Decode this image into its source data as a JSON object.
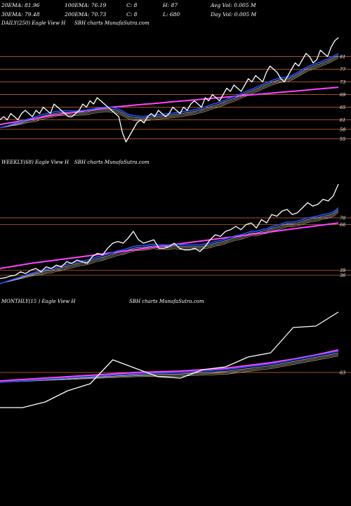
{
  "header": {
    "r1": [
      "20EMA: 81.96",
      "100EMA: 76.19",
      "C: 8",
      "H: 87",
      "Avg Vol: 0.005 M"
    ],
    "r2": [
      "30EMA: 79.48",
      "200EMA: 70.73",
      "C: 8",
      "L: 680",
      "Day Vol: 0.005 M"
    ]
  },
  "panels": [
    {
      "id": "daily",
      "title_a": "DAILY(250) Eagle  View  H",
      "title_b": "SBH charts MunafaSutra.com"
    },
    {
      "id": "weekly",
      "title_a": "WEEKLY(68) Eagle  View  H",
      "title_b": "SBH charts MunafaSutra.com"
    },
    {
      "id": "monthly",
      "title_a": "MONTHLY(15           ) Eagle  View  H",
      "title_b": "SBH charts MunafaSutra.com"
    }
  ],
  "colors": {
    "price": "#ffffff",
    "ema_fast": "#2255ff",
    "ema_slow": "#ff44ff",
    "level": "#a0522d",
    "ema_grey1": "#aaaaaa",
    "ema_grey2": "#dddddd",
    "ema_tan": "#d2b48c"
  },
  "chart_data": [
    {
      "type": "line",
      "panel": "daily",
      "ylim": [
        50,
        90
      ],
      "levels": [
        81,
        77,
        73,
        69,
        65,
        61,
        58,
        55
      ],
      "series": [
        {
          "role": "price",
          "values": [
            61,
            62,
            61,
            63,
            62,
            61,
            63,
            64,
            63,
            62,
            64,
            63,
            65,
            64,
            63,
            66,
            65,
            64,
            63,
            62,
            62,
            63,
            64,
            66,
            65,
            67,
            66,
            68,
            67,
            66,
            65,
            64,
            63,
            62,
            57,
            54,
            56,
            58,
            60,
            61,
            60,
            62,
            63,
            62,
            64,
            63,
            62,
            63,
            65,
            64,
            63,
            65,
            64,
            66,
            67,
            66,
            65,
            68,
            67,
            69,
            68,
            67,
            69,
            71,
            70,
            72,
            71,
            70,
            72,
            74,
            73,
            75,
            74,
            73,
            76,
            78,
            77,
            76,
            74,
            73,
            75,
            77,
            79,
            78,
            80,
            82,
            81,
            79,
            80,
            83,
            82,
            81,
            84,
            86,
            87
          ]
        },
        {
          "role": "ema_fast",
          "values": [
            58.5,
            58.8,
            59.1,
            59.5,
            59.8,
            60.1,
            60.5,
            61,
            61.3,
            61.6,
            62,
            62.4,
            62.7,
            63,
            63.2,
            63.5,
            63.7,
            63.8,
            63.9,
            63.9,
            63.8,
            63.8,
            63.9,
            64,
            64.1,
            64.3,
            64.5,
            64.7,
            64.9,
            65,
            65,
            64.9,
            64.7,
            64.3,
            63.8,
            63.1,
            62.6,
            62.3,
            62.2,
            62.1,
            62.1,
            62.2,
            62.4,
            62.5,
            62.7,
            62.8,
            62.9,
            63,
            63.1,
            63.3,
            63.4,
            63.6,
            63.8,
            64,
            64.2,
            64.5,
            64.8,
            65.1,
            65.5,
            65.9,
            66.2,
            66.6,
            67,
            67.5,
            67.9,
            68.3,
            68.8,
            69.3,
            69.8,
            70.3,
            70.7,
            71.2,
            71.7,
            72.2,
            72.7,
            73.2,
            73.6,
            74,
            74.3,
            74.4,
            74.6,
            75,
            75.6,
            76.2,
            76.9,
            77.6,
            78.1,
            78.5,
            78.9,
            79.3,
            79.8,
            80.2,
            80.8,
            81.4,
            81.96
          ]
        },
        {
          "role": "ema_slow",
          "values": [
            59.5,
            59.7,
            59.9,
            60.1,
            60.3,
            60.5,
            60.7,
            60.9,
            61.1,
            61.3,
            61.5,
            61.7,
            61.9,
            62.1,
            62.3,
            62.5,
            62.6,
            62.8,
            63,
            63.2,
            63.3,
            63.5,
            63.6,
            63.8,
            64,
            64.1,
            64.3,
            64.4,
            64.6,
            64.7,
            64.9,
            65,
            65.1,
            65.2,
            65.3,
            65.4,
            65.5,
            65.6,
            65.7,
            65.8,
            65.9,
            66,
            66.1,
            66.2,
            66.3,
            66.4,
            66.5,
            66.6,
            66.7,
            66.8,
            66.9,
            67,
            67.1,
            67.2,
            67.3,
            67.4,
            67.5,
            67.6,
            67.7,
            67.8,
            67.9,
            68,
            68.1,
            68.2,
            68.3,
            68.4,
            68.5,
            68.6,
            68.7,
            68.8,
            68.9,
            69,
            69.1,
            69.2,
            69.3,
            69.4,
            69.5,
            69.6,
            69.7,
            69.8,
            69.9,
            70,
            70.1,
            70.2,
            70.3,
            70.4,
            70.5,
            70.6,
            70.7,
            70.8,
            70.9,
            71,
            71.1,
            71.2,
            71.3
          ]
        }
      ]
    },
    {
      "type": "line",
      "panel": "weekly",
      "ylim": [
        25,
        100
      ],
      "levels": [
        70,
        66,
        39,
        36
      ],
      "series": [
        {
          "role": "price",
          "values": [
            34,
            34.5,
            35.5,
            36,
            38,
            37,
            39,
            40,
            38,
            41,
            40,
            42,
            41,
            44,
            43,
            45,
            44,
            43,
            47,
            49,
            48,
            52,
            55,
            56,
            55,
            58,
            62,
            57,
            55,
            56,
            57,
            52,
            52,
            53,
            55,
            52,
            51,
            51,
            52,
            50,
            53,
            57,
            60,
            59,
            62,
            63,
            65,
            63,
            66,
            67,
            64,
            69,
            67,
            72,
            71,
            74,
            75,
            72,
            73,
            76,
            79,
            77,
            78,
            81,
            80,
            83,
            90
          ]
        },
        {
          "role": "ema_fast",
          "values": [
            31,
            32,
            33,
            34,
            35,
            36,
            37,
            38,
            38.5,
            39.5,
            40,
            41,
            41.5,
            42.5,
            43,
            44,
            44.5,
            45,
            46,
            47,
            47.5,
            48.5,
            49.5,
            50.5,
            51,
            52,
            53,
            53.5,
            53.5,
            54,
            54.5,
            54,
            54,
            54,
            54.5,
            54,
            54,
            54,
            54,
            54,
            54.5,
            55,
            56,
            56.5,
            57.5,
            58.5,
            59.5,
            60,
            61,
            62,
            62,
            63,
            63.5,
            65,
            65.5,
            66.5,
            67.5,
            67.5,
            68,
            69,
            70,
            70.5,
            71,
            72,
            72.5,
            73.5,
            76
          ]
        },
        {
          "role": "ema_slow",
          "values": [
            40,
            40.5,
            41,
            41.5,
            42,
            42.5,
            43,
            43.4,
            43.8,
            44.2,
            44.6,
            45,
            45.4,
            45.8,
            46.2,
            46.6,
            47,
            47.4,
            47.8,
            48.2,
            48.6,
            49,
            49.4,
            49.8,
            50.2,
            50.6,
            51,
            51.4,
            51.8,
            52.2,
            52.6,
            53,
            53.4,
            53.8,
            54.2,
            54.6,
            55,
            55.4,
            55.8,
            56.2,
            56.6,
            57,
            57.4,
            57.8,
            58.2,
            58.6,
            59,
            59.4,
            59.8,
            60.2,
            60.6,
            61,
            61.4,
            61.8,
            62.2,
            62.6,
            63,
            63.4,
            63.8,
            64.2,
            64.6,
            65,
            65.4,
            65.8,
            66.2,
            66.6,
            67
          ]
        }
      ]
    },
    {
      "type": "line",
      "panel": "monthly",
      "ylim": [
        20,
        110
      ],
      "levels": [
        63
      ],
      "series": [
        {
          "role": "price",
          "values": [
            38,
            38,
            42,
            50,
            55,
            72,
            66,
            60,
            59,
            65,
            67,
            74,
            77,
            95,
            96,
            106
          ]
        },
        {
          "role": "ema_fast",
          "values": [
            56,
            57,
            58,
            59,
            60,
            61,
            62,
            62.5,
            63,
            64,
            65,
            67,
            69,
            72,
            75,
            78
          ]
        },
        {
          "role": "ema_slow",
          "values": [
            57,
            58,
            59,
            60,
            61,
            62,
            63,
            63.5,
            64,
            65,
            66,
            68,
            70,
            72.5,
            75.5,
            79
          ]
        }
      ]
    }
  ]
}
